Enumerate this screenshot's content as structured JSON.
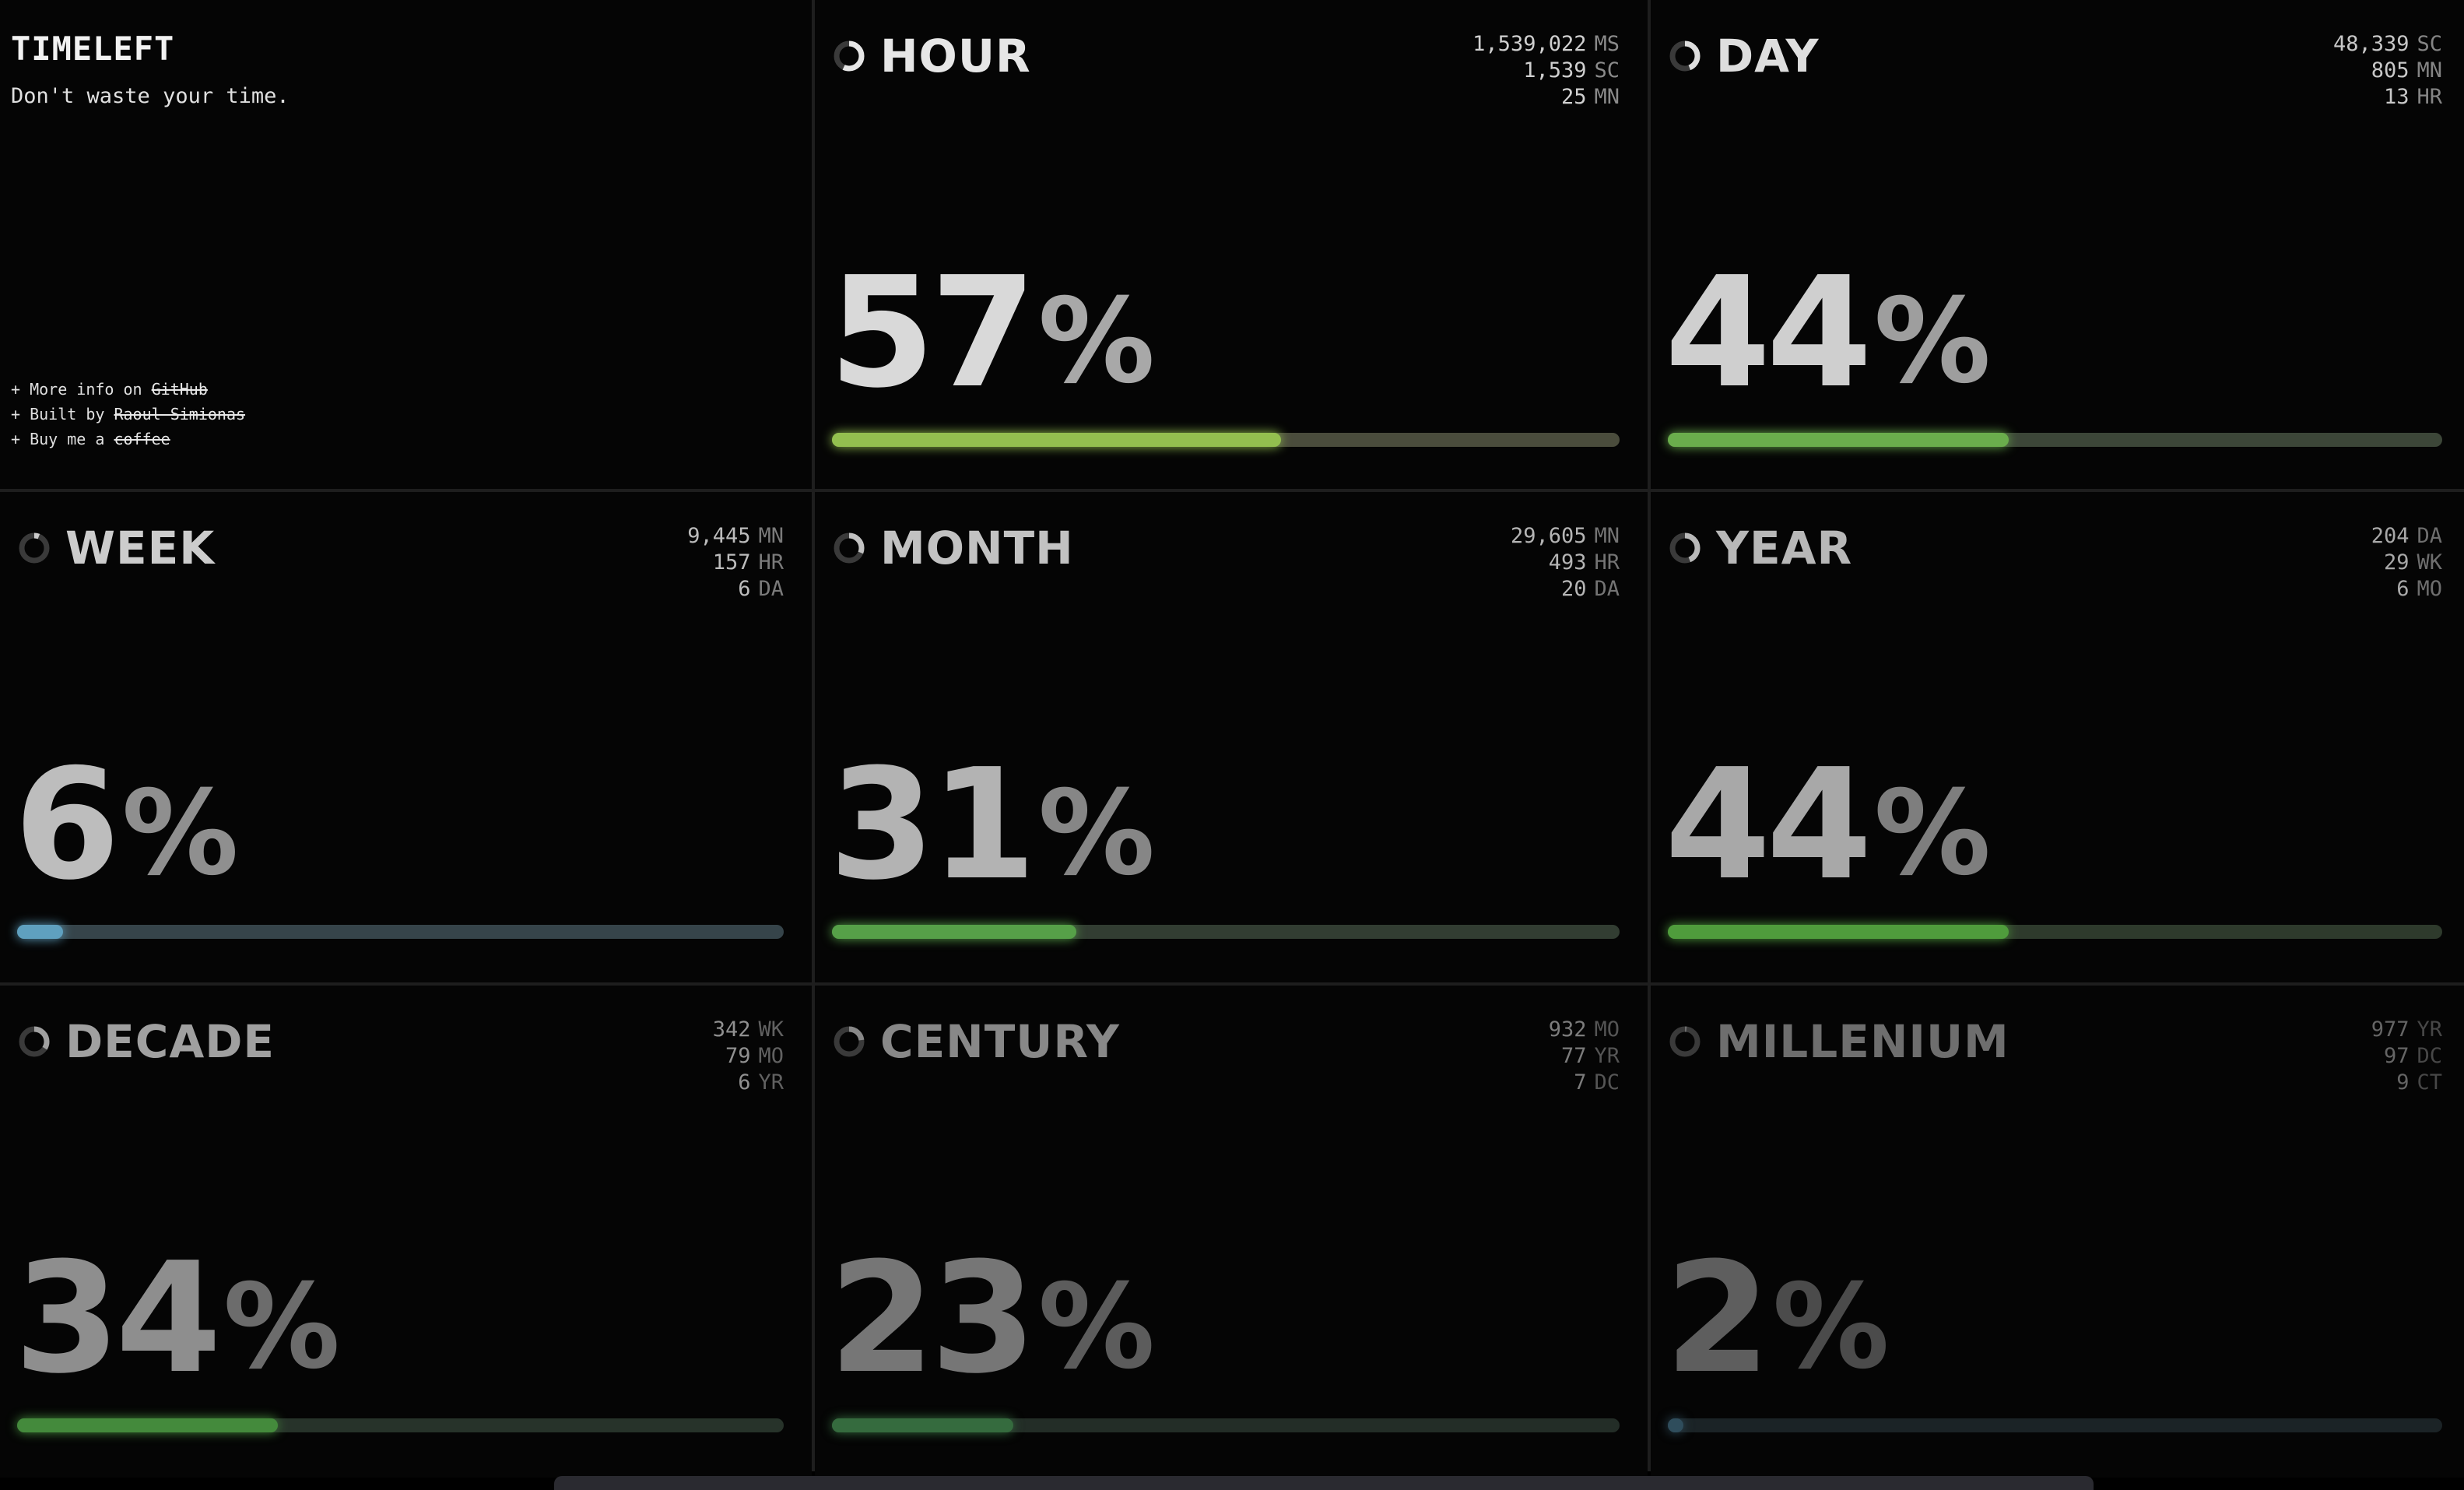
{
  "intro": {
    "title": "TIMELEFT",
    "subtitle": "Don't waste your time.",
    "links": [
      {
        "prefix": "+ More info on ",
        "link": "GitHub"
      },
      {
        "prefix": "+ Built by ",
        "link": "Raoul Simionas"
      },
      {
        "prefix": "+ Buy me a ",
        "link": "coffee"
      }
    ]
  },
  "cells": [
    {
      "label": "HOUR",
      "percent": 57,
      "progress": 0.57,
      "text_color": "#d9d9d9",
      "sign_color": "#a8a8a8",
      "label_color": "#e6e6e6",
      "stat_color": "#d0d0d0",
      "unit_color": "#8a8a8a",
      "fill_color": "#93bf4f",
      "track_color": "#4a4c3c",
      "stats": [
        {
          "value": "1,539,022",
          "unit": "MS"
        },
        {
          "value": "1,539",
          "unit": "SC"
        },
        {
          "value": "25",
          "unit": "MN"
        }
      ]
    },
    {
      "label": "DAY",
      "percent": 44,
      "progress": 0.44,
      "text_color": "#cfcfcf",
      "sign_color": "#9e9e9e",
      "label_color": "#dedede",
      "stat_color": "#c8c8c8",
      "unit_color": "#858585",
      "fill_color": "#6aad4c",
      "track_color": "#3c4638",
      "stats": [
        {
          "value": "48,339",
          "unit": "SC"
        },
        {
          "value": "805",
          "unit": "MN"
        },
        {
          "value": "13",
          "unit": "HR"
        }
      ]
    },
    {
      "label": "WEEK",
      "percent": 6,
      "progress": 0.06,
      "text_color": "#bdbdbd",
      "sign_color": "#8f8f8f",
      "label_color": "#cccccc",
      "stat_color": "#bcbcbc",
      "unit_color": "#7a7a7a",
      "fill_color": "#5fa0bf",
      "track_color": "#36444a",
      "stats": [
        {
          "value": "9,445",
          "unit": "MN"
        },
        {
          "value": "157",
          "unit": "HR"
        },
        {
          "value": "6",
          "unit": "DA"
        }
      ]
    },
    {
      "label": "MONTH",
      "percent": 31,
      "progress": 0.31,
      "text_color": "#b3b3b3",
      "sign_color": "#868686",
      "label_color": "#c2c2c2",
      "stat_color": "#b5b5b5",
      "unit_color": "#747474",
      "fill_color": "#56a048",
      "track_color": "#323d32",
      "stats": [
        {
          "value": "29,605",
          "unit": "MN"
        },
        {
          "value": "493",
          "unit": "HR"
        },
        {
          "value": "20",
          "unit": "DA"
        }
      ]
    },
    {
      "label": "YEAR",
      "percent": 44,
      "progress": 0.44,
      "text_color": "#a8a8a8",
      "sign_color": "#7e7e7e",
      "label_color": "#b8b8b8",
      "stat_color": "#a8a8a8",
      "unit_color": "#6e6e6e",
      "fill_color": "#4f9c3c",
      "track_color": "#2e3a2c",
      "stats": [
        {
          "value": "204",
          "unit": "DA"
        },
        {
          "value": "29",
          "unit": "WK"
        },
        {
          "value": "6",
          "unit": "MO"
        }
      ]
    },
    {
      "label": "DECADE",
      "percent": 34,
      "progress": 0.34,
      "text_color": "#8e8e8e",
      "sign_color": "#6c6c6c",
      "label_color": "#a0a0a0",
      "stat_color": "#909090",
      "unit_color": "#616161",
      "fill_color": "#448a3c",
      "track_color": "#27332a",
      "stats": [
        {
          "value": "342",
          "unit": "WK"
        },
        {
          "value": "79",
          "unit": "MO"
        },
        {
          "value": "6",
          "unit": "YR"
        }
      ]
    },
    {
      "label": "CENTURY",
      "percent": 23,
      "progress": 0.23,
      "text_color": "#767676",
      "sign_color": "#5c5c5c",
      "label_color": "#888888",
      "stat_color": "#7c7c7c",
      "unit_color": "#555555",
      "fill_color": "#356b3e",
      "track_color": "#232d27",
      "stats": [
        {
          "value": "932",
          "unit": "MO"
        },
        {
          "value": "77",
          "unit": "YR"
        },
        {
          "value": "7",
          "unit": "DC"
        }
      ]
    },
    {
      "label": "MILLENIUM",
      "percent": 2,
      "progress": 0.02,
      "text_color": "#5e5e5e",
      "sign_color": "#4b4b4b",
      "label_color": "#6e6e6e",
      "stat_color": "#656565",
      "unit_color": "#474747",
      "fill_color": "#2f4d5c",
      "track_color": "#1b2326",
      "stats": [
        {
          "value": "977",
          "unit": "YR"
        },
        {
          "value": "97",
          "unit": "DC"
        },
        {
          "value": "9",
          "unit": "CT"
        }
      ]
    }
  ]
}
